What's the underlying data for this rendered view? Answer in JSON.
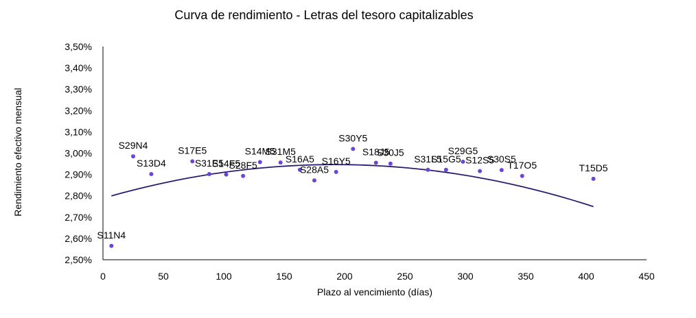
{
  "chart_data": {
    "type": "scatter",
    "title": "Curva de rendimiento  - Letras del tesoro capitalizables",
    "xlabel": "Plazo al vencimiento (días)",
    "ylabel": "Rendimiento efectivo mensual",
    "xlim": [
      0,
      450
    ],
    "ylim": [
      2.5,
      3.5
    ],
    "xticks": [
      0,
      50,
      100,
      150,
      200,
      250,
      300,
      350,
      400,
      450
    ],
    "yticks": [
      2.5,
      2.6,
      2.7,
      2.8,
      2.9,
      3.0,
      3.1,
      3.2,
      3.3,
      3.4,
      3.5
    ],
    "xtick_labels": [
      "0",
      "50",
      "100",
      "150",
      "200",
      "250",
      "300",
      "350",
      "400",
      "450"
    ],
    "ytick_labels": [
      "2,50%",
      "2,60%",
      "2,70%",
      "2,80%",
      "2,90%",
      "3,00%",
      "3,10%",
      "3,20%",
      "3,30%",
      "3,40%",
      "3,50%"
    ],
    "grid": false,
    "legend": false,
    "point_color": "#6a45d6",
    "trendline_color": "#2e1a6e",
    "trendline": {
      "type": "polynomial",
      "degree": 2,
      "x_start": 7,
      "x_end": 406,
      "coefficients": [
        2.7882,
        0.00165,
        -4.3e-06
      ]
    },
    "points": [
      {
        "label": "S11N4",
        "x": 7,
        "y": 2.565
      },
      {
        "label": "S29N4",
        "x": 25,
        "y": 2.985
      },
      {
        "label": "S13D4",
        "x": 40,
        "y": 2.902
      },
      {
        "label": "S17E5",
        "x": 74,
        "y": 2.962
      },
      {
        "label": "S31E5",
        "x": 88,
        "y": 2.902
      },
      {
        "label": "S14F5",
        "x": 102,
        "y": 2.9
      },
      {
        "label": "S28F5",
        "x": 116,
        "y": 2.893
      },
      {
        "label": "S14M5",
        "x": 130,
        "y": 2.958
      },
      {
        "label": "S31M5",
        "x": 147,
        "y": 2.956
      },
      {
        "label": "S16A5",
        "x": 163,
        "y": 2.922
      },
      {
        "label": "S28A5",
        "x": 175,
        "y": 2.872
      },
      {
        "label": "S16Y5",
        "x": 193,
        "y": 2.912
      },
      {
        "label": "S30Y5",
        "x": 207,
        "y": 3.02
      },
      {
        "label": "S18J5",
        "x": 226,
        "y": 2.955
      },
      {
        "label": "S30J5",
        "x": 238,
        "y": 2.951
      },
      {
        "label": "S31L5",
        "x": 269,
        "y": 2.922
      },
      {
        "label": "S15G5",
        "x": 284,
        "y": 2.922
      },
      {
        "label": "S29G5",
        "x": 298,
        "y": 2.96
      },
      {
        "label": "S12S5",
        "x": 312,
        "y": 2.916
      },
      {
        "label": "S30S5",
        "x": 330,
        "y": 2.921
      },
      {
        "label": "T17O5",
        "x": 347,
        "y": 2.893
      },
      {
        "label": "T15D5",
        "x": 406,
        "y": 2.88
      }
    ]
  }
}
